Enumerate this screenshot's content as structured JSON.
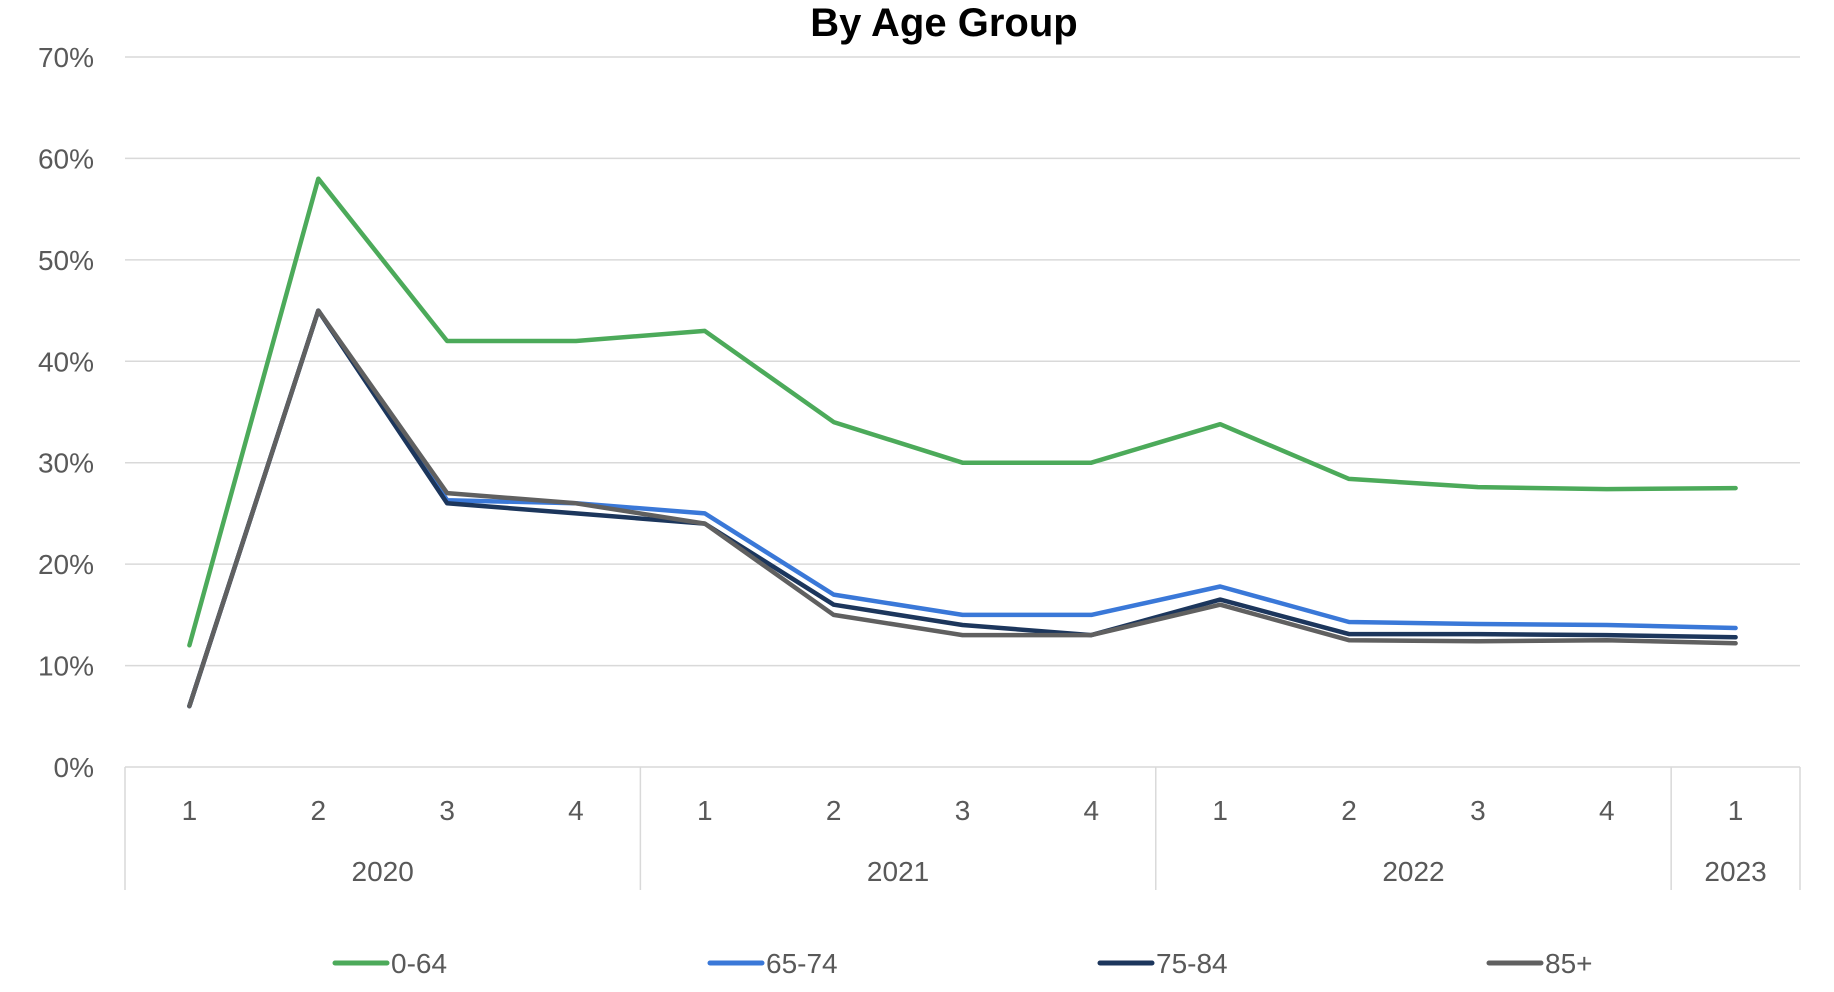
{
  "chart_data": {
    "type": "line",
    "title": "By Age Group",
    "xlabel": "",
    "ylabel": "",
    "ylim": [
      0,
      70
    ],
    "y_ticks": [
      "0%",
      "10%",
      "20%",
      "30%",
      "40%",
      "50%",
      "60%",
      "70%"
    ],
    "y_tick_values": [
      0,
      10,
      20,
      30,
      40,
      50,
      60,
      70
    ],
    "grid": true,
    "legend_position": "bottom",
    "categories": [
      "1",
      "2",
      "3",
      "4",
      "1",
      "2",
      "3",
      "4",
      "1",
      "2",
      "3",
      "4",
      "1"
    ],
    "groups": [
      {
        "label": "2020",
        "count": 4
      },
      {
        "label": "2021",
        "count": 4
      },
      {
        "label": "2022",
        "count": 4
      },
      {
        "label": "2023",
        "count": 1
      }
    ],
    "series": [
      {
        "name": "0-64",
        "color": "#4caa5a",
        "values": [
          12,
          58,
          42,
          42,
          43,
          34,
          30,
          30,
          33.8,
          28.4,
          27.6,
          27.4,
          27.5
        ]
      },
      {
        "name": "65-74",
        "color": "#3a78d8",
        "values": [
          6,
          45,
          26.3,
          26,
          25,
          17,
          15,
          15,
          17.8,
          14.3,
          14.1,
          14,
          13.7
        ]
      },
      {
        "name": "75-84",
        "color": "#1c365c",
        "values": [
          6,
          45,
          26,
          25,
          24,
          16,
          14,
          13,
          16.5,
          13.1,
          13.1,
          13,
          12.8
        ]
      },
      {
        "name": "85+",
        "color": "#606060",
        "values": [
          6,
          45,
          27,
          26,
          24,
          15,
          13,
          13,
          16,
          12.5,
          12.4,
          12.5,
          12.2
        ]
      }
    ]
  }
}
